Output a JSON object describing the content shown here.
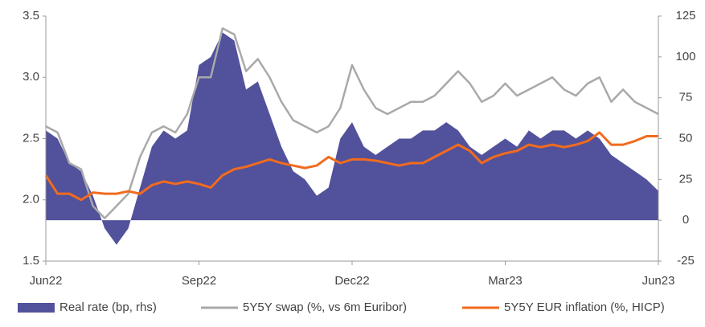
{
  "chart_data": {
    "type": "line",
    "x": [
      0,
      1,
      2,
      3,
      4,
      5,
      6,
      7,
      8,
      9,
      10,
      11,
      12,
      13,
      14,
      15,
      16,
      17,
      18,
      19,
      20,
      21,
      22,
      23,
      24,
      25,
      26,
      27,
      28,
      29,
      30,
      31,
      32,
      33,
      34,
      35,
      36,
      37,
      38,
      39,
      40,
      41,
      42,
      43,
      44,
      45,
      46,
      47,
      48,
      49,
      50,
      51,
      52
    ],
    "xlim": [
      0,
      52
    ],
    "xticks": [
      {
        "value": 0,
        "label": "Jun22"
      },
      {
        "value": 13,
        "label": "Sep22"
      },
      {
        "value": 26,
        "label": "Dec22"
      },
      {
        "value": 39,
        "label": "Mar23"
      },
      {
        "value": 52,
        "label": "Jun23"
      }
    ],
    "ylim": [
      1.5,
      3.5
    ],
    "yticks": [
      1.5,
      {
        "value": 2,
        "label": "2.0"
      },
      2.5,
      {
        "value": 3,
        "label": "3.0"
      },
      3.5
    ],
    "y2lim": [
      -25,
      125
    ],
    "y2ticks": [
      -25,
      0,
      25,
      50,
      75,
      100,
      125
    ],
    "series": [
      {
        "name": "Real rate (bp, rhs)",
        "type": "area",
        "axis": "y2",
        "color": "#52519b",
        "values": [
          55,
          50,
          35,
          30,
          15,
          -5,
          -15,
          -5,
          20,
          45,
          55,
          50,
          55,
          95,
          100,
          115,
          110,
          80,
          85,
          65,
          45,
          30,
          25,
          15,
          20,
          50,
          60,
          45,
          40,
          45,
          50,
          50,
          55,
          55,
          60,
          55,
          45,
          40,
          45,
          50,
          45,
          55,
          50,
          55,
          55,
          50,
          55,
          50,
          40,
          35,
          30,
          25,
          18
        ]
      },
      {
        "name": "5Y5Y swap (%, vs 6m Euribor)",
        "type": "line",
        "color": "#a9a9a9",
        "values": [
          2.6,
          2.55,
          2.3,
          2.25,
          1.95,
          1.85,
          1.95,
          2.05,
          2.35,
          2.55,
          2.6,
          2.55,
          2.7,
          3.0,
          3.0,
          3.4,
          3.35,
          3.05,
          3.15,
          3.0,
          2.8,
          2.65,
          2.6,
          2.55,
          2.6,
          2.75,
          3.1,
          2.9,
          2.75,
          2.7,
          2.75,
          2.8,
          2.8,
          2.85,
          2.95,
          3.05,
          2.95,
          2.8,
          2.85,
          2.95,
          2.85,
          2.9,
          2.95,
          3.0,
          2.9,
          2.85,
          2.95,
          3.0,
          2.8,
          2.9,
          2.8,
          2.75,
          2.7
        ]
      },
      {
        "name": "5Y5Y EUR inflation (%, HICP)",
        "type": "line",
        "color": "#f26b1d",
        "values": [
          2.2,
          2.05,
          2.05,
          2.0,
          2.06,
          2.05,
          2.05,
          2.07,
          2.05,
          2.12,
          2.15,
          2.13,
          2.15,
          2.13,
          2.1,
          2.2,
          2.25,
          2.27,
          2.3,
          2.33,
          2.3,
          2.28,
          2.26,
          2.28,
          2.35,
          2.3,
          2.33,
          2.33,
          2.32,
          2.3,
          2.28,
          2.3,
          2.3,
          2.35,
          2.4,
          2.45,
          2.4,
          2.3,
          2.35,
          2.38,
          2.4,
          2.45,
          2.43,
          2.45,
          2.43,
          2.45,
          2.48,
          2.55,
          2.45,
          2.45,
          2.48,
          2.52,
          2.52
        ]
      }
    ]
  }
}
